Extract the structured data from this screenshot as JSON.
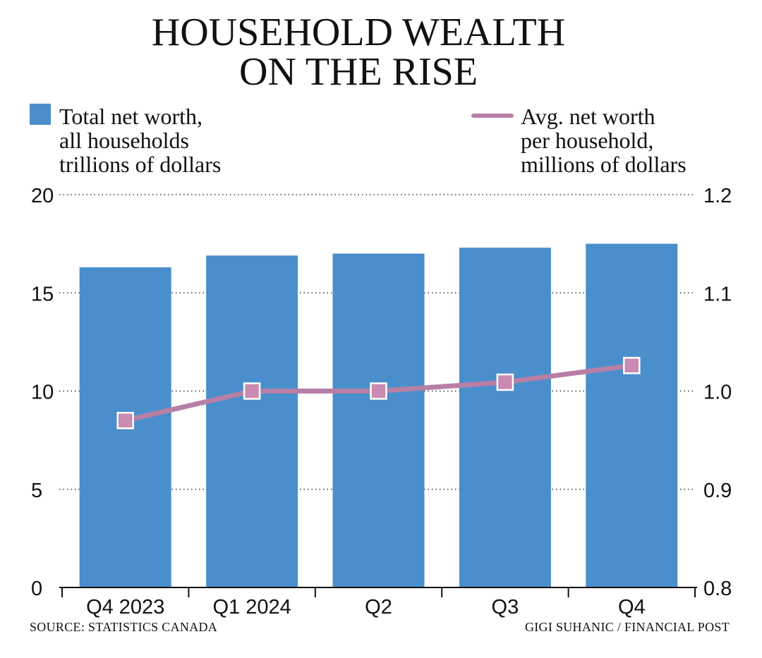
{
  "colors": {
    "bar": "#4a8fcc",
    "line": "#b87fa6",
    "marker_fill": "#c98bb1",
    "text": "#111111"
  },
  "chart_data": {
    "type": "bar",
    "title_lines": [
      "HOUSEHOLD WEALTH",
      "ON THE RISE"
    ],
    "categories": [
      "Q4 2023",
      "Q1 2024",
      "Q2",
      "Q3",
      "Q4"
    ],
    "series": [
      {
        "name_lines": [
          "Total net worth,",
          "all households",
          "trillions of dollars"
        ],
        "type": "bar",
        "axis": "left",
        "values": [
          16.3,
          16.9,
          17.0,
          17.3,
          17.5
        ]
      },
      {
        "name_lines": [
          "Avg. net worth",
          "per household,",
          "millions of dollars"
        ],
        "type": "line",
        "axis": "right",
        "values": [
          0.97,
          1.0,
          1.0,
          1.009,
          1.026
        ]
      }
    ],
    "left_axis": {
      "ticks": [
        "0",
        "5",
        "10",
        "15",
        "20"
      ],
      "ylim": [
        0,
        20
      ]
    },
    "right_axis": {
      "ticks": [
        "0.8",
        "0.9",
        "1.0",
        "1.1",
        "1.2"
      ],
      "ylim": [
        0.8,
        1.2
      ]
    },
    "grid": "dotted horizontal",
    "legend": "top"
  },
  "footer": {
    "source": "SOURCE: STATISTICS CANADA",
    "credit": "GIGI SUHANIC / FINANCIAL POST"
  }
}
